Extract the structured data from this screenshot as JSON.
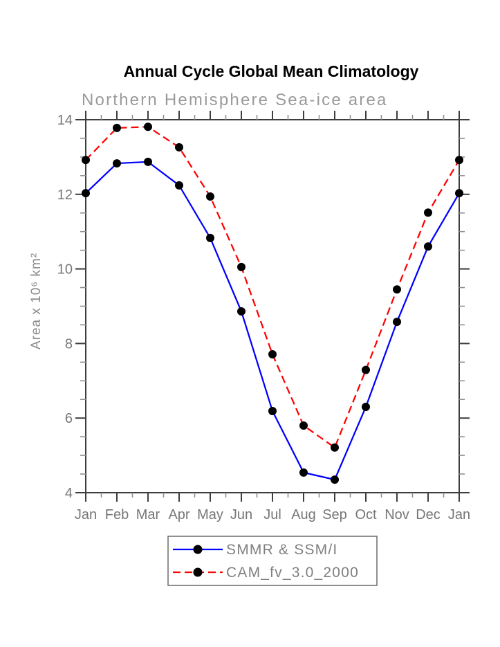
{
  "colors": {
    "series_smmr": "#0000ff",
    "series_cam": "#ff0000",
    "marker": "#000000",
    "frame": "#3d3d3d",
    "minor_tick": "#8f8f8f",
    "tick_label": "#767676",
    "title": "#000000",
    "subtitle": "#9a9a9a",
    "ylabel": "#8a8a8a",
    "legend_border": "#6a6a6a",
    "legend_text": "#808080"
  },
  "chart_data": {
    "type": "line",
    "title": "Annual Cycle Global Mean Climatology",
    "subtitle": "Northern Hemisphere Sea-ice area",
    "xlabel": "",
    "ylabel": "Area x 10⁶ km²",
    "x_tick_labels": [
      "Jan",
      "Feb",
      "Mar",
      "Apr",
      "May",
      "Jun",
      "Jul",
      "Aug",
      "Sep",
      "Oct",
      "Nov",
      "Dec",
      "Jan"
    ],
    "ylim": [
      4,
      14
    ],
    "y_major_ticks": [
      14,
      12,
      10,
      8,
      6,
      4
    ],
    "y_minor_step": 0.5,
    "x_minor_ticks_per_interval": 1,
    "grid": false,
    "legend_position": "bottom-center",
    "series": [
      {
        "name": "SMMR & SSM/I",
        "line_style": "solid",
        "color": "#0000ff",
        "marker": "filled-circle",
        "values": [
          12.03,
          12.83,
          12.87,
          12.24,
          10.83,
          8.86,
          6.19,
          4.54,
          4.35,
          6.3,
          8.58,
          10.6,
          12.03
        ]
      },
      {
        "name": "CAM_fv_3.0_2000",
        "line_style": "dashed",
        "color": "#ff0000",
        "marker": "filled-circle",
        "values": [
          12.92,
          13.78,
          13.81,
          13.26,
          11.94,
          10.05,
          7.71,
          5.8,
          5.21,
          7.29,
          9.45,
          11.51,
          12.92
        ]
      }
    ]
  }
}
